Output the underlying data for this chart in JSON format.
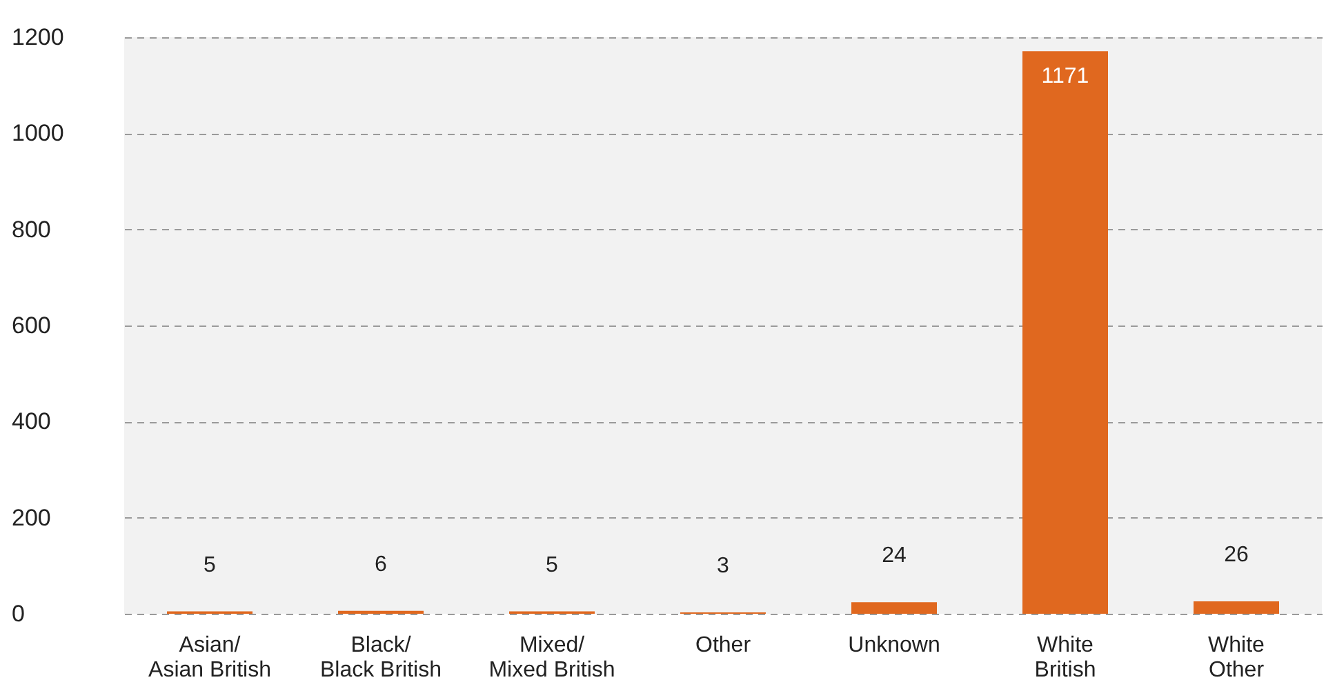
{
  "chart_data": {
    "type": "bar",
    "categories": [
      "Asian/\nAsian British",
      "Black/\nBlack British",
      "Mixed/\nMixed British",
      "Other",
      "Unknown",
      "White\nBritish",
      "White\nOther"
    ],
    "values": [
      5,
      6,
      5,
      3,
      24,
      1171,
      26
    ],
    "color": "#e0681f",
    "ylim": [
      0,
      1200
    ],
    "yticks": [
      0,
      200,
      400,
      600,
      800,
      1000,
      1200
    ],
    "grid": "y",
    "data_labels": true
  }
}
